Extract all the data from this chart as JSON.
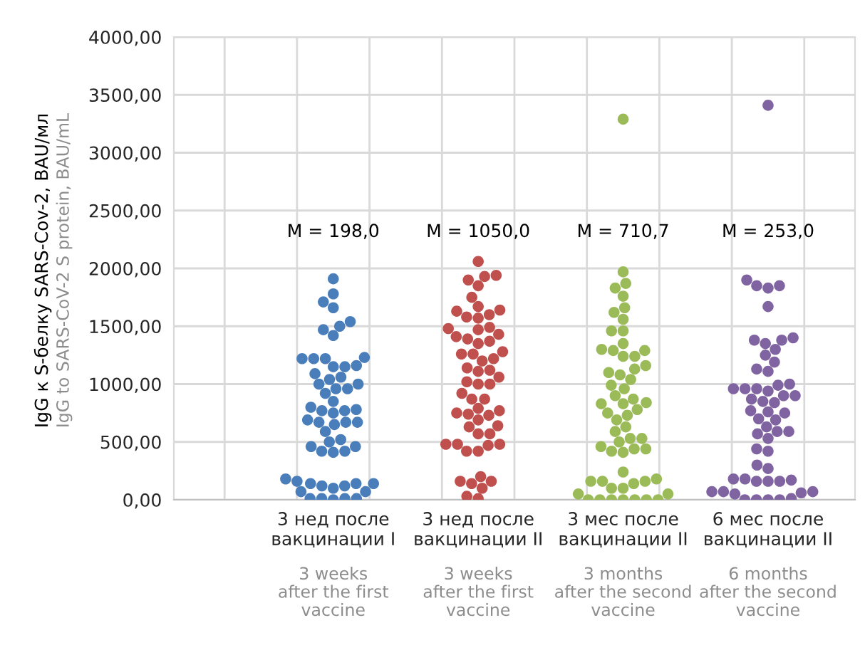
{
  "chart_data": {
    "type": "scatter",
    "ylabel": "IgG к S-белку SARS-Cov-2, BAU/мл",
    "categories": [
      "3 нед после\nвакцинации I",
      "3 нед после\nвакцинации II",
      "3 мес после\nвакцинации II",
      "6 мес после\nвакцинации II"
    ],
    "ylim": [
      0,
      4000
    ],
    "yticks": [
      {
        "value": 0,
        "label": "0,00"
      },
      {
        "value": 500,
        "label": "500,00"
      },
      {
        "value": 1000,
        "label": "1000,00"
      },
      {
        "value": 1500,
        "label": "1500,00"
      },
      {
        "value": 2000,
        "label": "2000,00"
      },
      {
        "value": 2500,
        "label": "2500,00"
      },
      {
        "value": 3000,
        "label": "3000,00"
      },
      {
        "value": 3500,
        "label": "3500,00"
      },
      {
        "value": 4000,
        "label": "4000,00"
      }
    ],
    "grid": true,
    "marker": "circle",
    "annotations": [
      "M = 198,0",
      "M = 1050,0",
      "M = 710,7",
      "M = 253,0",
      "3 weeks\nafter the first\nvaccine",
      "3 weeks\nafter the first\nvaccine",
      "3 months\nafter the second\nvaccine",
      "6 months\nafter the second\nvaccine",
      "IgG to SARS-CoV-2 S protein, BAU/mL"
    ],
    "series": [
      {
        "color": "#4a7ebb",
        "x": [
          "3 нед после\nвакцинации I",
          "3 нед после\nвакцинации I",
          "3 нед после\nвакцинации I",
          "3 нед после\nвакцинации I",
          "3 нед после\nвакцинации I",
          "3 нед после\nвакцинации I",
          "3 нед после\nвакцинации I",
          "3 нед после\nвакцинации I",
          "3 нед после\nвакцинации I",
          "3 нед после\nвакцинации I",
          "3 нед после\nвакцинации I",
          "3 нед после\nвакцинации I",
          "3 нед после\nвакцинации I",
          "3 нед после\nвакцинации I",
          "3 нед после\nвакцинации I",
          "3 нед после\nвакцинации I",
          "3 нед после\nвакцинации I",
          "3 нед после\nвакцинации I",
          "3 нед после\nвакцинации I",
          "3 нед после\nвакцинации I",
          "3 нед после\nвакцинации I",
          "3 нед после\nвакцинации I",
          "3 нед после\nвакцинации I",
          "3 нед после\nвакцинации I",
          "3 нед после\nвакцинации I",
          "3 нед после\nвакцинации I",
          "3 нед после\nвакцинации I",
          "3 нед после\nвакцинации I",
          "3 нед после\nвакцинации I",
          "3 нед после\nвакцинации I",
          "3 нед после\nвакцинации I",
          "3 нед после\nвакцинации I",
          "3 нед после\nвакцинации I",
          "3 нед после\nвакцинации I",
          "3 нед после\nвакцинации I",
          "3 нед после\nвакцинации I",
          "3 нед после\nвакцинации I",
          "3 нед после\nвакцинации I",
          "3 нед после\nвакцинации I",
          "3 нед после\nвакцинации I",
          "3 нед после\nвакцинации I",
          "3 нед после\nвакцинации I",
          "3 нед после\nвакцинации I",
          "3 нед после\nвакцинации I",
          "3 нед после\nвакцинации I",
          "3 нед после\nвакцинации I",
          "3 нед после\nвакцинации I",
          "3 нед после\nвакцинации I",
          "3 нед после\nвакцинации I",
          "3 нед после\nвакцинации I",
          "3 нед после\nвакцинации I",
          "3 нед после\nвакцинации I",
          "3 нед после\nвакцинации I",
          "3 нед после\nвакцинации I",
          "3 нед после\nвакцинации I",
          "3 нед после\nвакцинации I",
          "3 нед после\nвакцинации I"
        ],
        "values": [
          1910,
          1780,
          1710,
          1660,
          1420,
          1230,
          1160,
          1060,
          1150,
          1090,
          1040,
          1000,
          960,
          1220,
          1220,
          1220,
          1500,
          1470,
          1540,
          1150,
          1000,
          920,
          960,
          850,
          770,
          780,
          690,
          750,
          670,
          670,
          770,
          670,
          590,
          800,
          650,
          500,
          420,
          460,
          520,
          410,
          420,
          460,
          160,
          140,
          10,
          10,
          120,
          180,
          10,
          140,
          10,
          140,
          0,
          70,
          100,
          120,
          70
        ]
      },
      {
        "color": "#c0504d",
        "x": [
          "3 нед после\nвакцинации II",
          "3 нед после\nвакцинации II",
          "3 нед после\nвакцинации II",
          "3 нед после\nвакцинации II",
          "3 нед после\nвакцинации II",
          "3 нед после\nвакцинации II",
          "3 нед после\nвакцинации II",
          "3 нед после\nвакцинации II",
          "3 нед после\nвакцинации II",
          "3 нед после\nвакцинации II",
          "3 нед после\nвакцинации II",
          "3 нед после\nвакцинации II",
          "3 нед после\nвакцинации II",
          "3 нед после\nвакцинации II",
          "3 нед после\nвакцинации II",
          "3 нед после\nвакцинации II",
          "3 нед после\nвакцинации II",
          "3 нед после\nвакцинации II",
          "3 нед после\nвакцинации II",
          "3 нед после\nвакцинации II",
          "3 нед после\nвакцинации II",
          "3 нед после\nвакцинации II",
          "3 нед после\nвакцинации II",
          "3 нед после\nвакцинации II",
          "3 нед после\nвакцинации II",
          "3 нед после\nвакцинации II",
          "3 нед после\nвакцинации II",
          "3 нед после\nвакцинации II",
          "3 нед после\nвакцинации II",
          "3 нед после\nвакцинации II",
          "3 нед после\nвакцинации II",
          "3 нед после\nвакцинации II",
          "3 нед после\nвакцинации II",
          "3 нед после\nвакцинации II",
          "3 нед после\nвакцинации II",
          "3 нед после\nвакцинации II",
          "3 нед после\nвакцинации II",
          "3 нед после\nвакцинации II",
          "3 нед после\nвакцинации II",
          "3 нед после\nвакцинации II",
          "3 нед после\nвакцинации II",
          "3 нед после\nвакцинации II",
          "3 нед после\nвакцинации II",
          "3 нед после\nвакцинации II",
          "3 нед после\nвакцинации II",
          "3 нед после\nвакцинации II",
          "3 нед после\nвакцинации II",
          "3 нед после\nвакцинации II",
          "3 нед после\nвакцинации II",
          "3 нед после\nвакцинации II",
          "3 нед после\nвакцинации II",
          "3 нед после\nвакцинации II",
          "3 нед после\nвакцинации II",
          "3 нед после\nвакцинации II",
          "3 нед после\nвакцинации II",
          "3 нед после\nвакцинации II",
          "3 нед после\nвакцинации II",
          "3 нед после\nвакцинации II"
        ],
        "values": [
          2060,
          1900,
          1930,
          1940,
          1850,
          1750,
          1640,
          1600,
          1670,
          1570,
          1630,
          1580,
          1490,
          1470,
          1350,
          1370,
          1480,
          1410,
          1430,
          1390,
          1260,
          1280,
          1200,
          1220,
          1260,
          1110,
          1140,
          1060,
          1120,
          1000,
          1000,
          1020,
          920,
          870,
          870,
          740,
          750,
          790,
          770,
          730,
          690,
          640,
          630,
          570,
          570,
          480,
          480,
          480,
          470,
          420,
          420,
          200,
          100,
          160,
          160,
          140,
          30,
          10
        ]
      },
      {
        "color": "#9bbb59",
        "x": [
          "3 мес после\nвакцинации II",
          "3 мес после\nвакцинации II",
          "3 мес после\nвакцинации II",
          "3 мес после\nвакцинации II",
          "3 мес после\nвакцинации II",
          "3 мес после\nвакцинации II",
          "3 мес после\nвакцинации II",
          "3 мес после\nвакцинации II",
          "3 мес после\nвакцинации II",
          "3 мес после\nвакцинации II",
          "3 мес после\nвакцинации II",
          "3 мес после\nвакцинации II",
          "3 мес после\nвакцинации II",
          "3 мес после\nвакцинации II",
          "3 мес после\nвакцинации II",
          "3 мес после\nвакцинации II",
          "3 мес после\nвакцинации II",
          "3 мес после\nвакцинации II",
          "3 мес после\nвакцинации II",
          "3 мес после\nвакцинации II",
          "3 мес после\nвакцинации II",
          "3 мес после\nвакцинации II",
          "3 мес после\nвакцинации II",
          "3 мес после\nвакцинации II",
          "3 мес после\nвакцинации II",
          "3 мес после\nвакцинации II",
          "3 мес после\nвакцинации II",
          "3 мес после\nвакцинации II",
          "3 мес после\nвакцинации II",
          "3 мес после\nвакцинации II",
          "3 мес после\nвакцинации II",
          "3 мес после\nвакцинации II",
          "3 мес после\nвакцинации II",
          "3 мес после\nвакцинации II",
          "3 мес после\nвакцинации II",
          "3 мес после\nвакцинации II",
          "3 мес после\nвакцинации II",
          "3 мес после\nвакцинации II",
          "3 мес после\nвакцинации II",
          "3 мес после\nвакцинации II",
          "3 мес после\nвакцинации II",
          "3 мес после\nвакцинации II",
          "3 мес после\nвакцинации II",
          "3 мес после\nвакцинации II",
          "3 мес после\nвакцинации II",
          "3 мес после\nвакцинации II",
          "3 мес после\nвакцинации II",
          "3 мес после\nвакцинации II",
          "3 мес после\nвакцинации II",
          "3 мес после\nвакцинации II",
          "3 мес после\nвакцинации II",
          "3 мес после\nвакцинации II",
          "3 мес после\nвакцинации II",
          "3 мес после\nвакцинации II",
          "3 мес после\nвакцинации II",
          "3 мес после\nвакцинации II",
          "3 мес после\nвакцинации II",
          "3 мес после\nвакцинации II",
          "3 мес после\nвакцинации II"
        ],
        "values": [
          3290,
          1970,
          1870,
          1830,
          1760,
          1660,
          1620,
          1560,
          1460,
          1460,
          1350,
          1290,
          1240,
          1290,
          1300,
          1240,
          1160,
          1130,
          1100,
          1080,
          1040,
          990,
          960,
          900,
          830,
          780,
          840,
          830,
          750,
          730,
          690,
          870,
          630,
          590,
          530,
          530,
          500,
          410,
          440,
          440,
          460,
          420,
          240,
          160,
          160,
          160,
          180,
          140,
          100,
          100,
          0,
          0,
          0,
          0,
          0,
          0,
          0,
          50,
          50
        ]
      },
      {
        "color": "#8064a2",
        "x": [
          "6 мес после\nвакцинации II",
          "6 мес после\nвакцинации II",
          "6 мес после\nвакцинации II",
          "6 мес после\nвакцинации II",
          "6 мес после\nвакцинации II",
          "6 мес после\nвакцинации II",
          "6 мес после\nвакцинации II",
          "6 мес после\nвакцинации II",
          "6 мес после\nвакцинации II",
          "6 мес после\nвакцинации II",
          "6 мес после\nвакцинации II",
          "6 мес после\nвакцинации II",
          "6 мес после\nвакцинации II",
          "6 мес после\nвакцинации II",
          "6 мес после\nвакцинации II",
          "6 мес после\nвакцинации II",
          "6 мес после\nвакцинации II",
          "6 мес после\nвакцинации II",
          "6 мес после\nвакцинации II",
          "6 мес после\nвакцинации II",
          "6 мес после\nвакцинации II",
          "6 мес после\nвакцинации II",
          "6 мес после\nвакцинации II",
          "6 мес после\nвакцинации II",
          "6 мес после\nвакцинации II",
          "6 мес после\nвакцинации II",
          "6 мес после\nвакцинации II",
          "6 мес после\nвакцинации II",
          "6 мес после\nвакцинации II",
          "6 мес после\nвакцинации II",
          "6 мес после\nвакцинации II",
          "6 мес после\nвакцинации II",
          "6 мес после\nвакцинации II",
          "6 мес после\nвакцинации II",
          "6 мес после\nвакцинации II",
          "6 мес после\nвакцинации II",
          "6 мес после\nвакцинации II",
          "6 мес после\nвакцинации II",
          "6 мес после\nвакцинации II",
          "6 мес после\nвакцинации II",
          "6 мес после\nвакцинации II",
          "6 мес после\nвакцинации II",
          "6 мес после\nвакцинации II",
          "6 мес после\nвакцинации II",
          "6 мес после\nвакцинации II",
          "6 мес после\nвакцинации II",
          "6 мес после\nвакцинации II",
          "6 мес после\nвакцинации II",
          "6 мес после\nвакцинации II",
          "6 мес после\nвакцинации II",
          "6 мес после\nвакцинации II",
          "6 мес после\nвакцинации II",
          "6 мес после\nвакцинации II",
          "6 мес после\nвакцинации II",
          "6 мес после\nвакцинации II",
          "6 мес после\nвакцинации II"
        ],
        "values": [
          3410,
          1850,
          1900,
          1830,
          1850,
          1670,
          1380,
          1400,
          1380,
          1350,
          1300,
          1250,
          1190,
          1130,
          1110,
          960,
          990,
          960,
          960,
          1000,
          940,
          900,
          870,
          900,
          840,
          850,
          770,
          750,
          760,
          700,
          690,
          630,
          590,
          570,
          530,
          590,
          420,
          440,
          300,
          270,
          180,
          160,
          180,
          160,
          170,
          160,
          70,
          50,
          70,
          60,
          70,
          0,
          0,
          0,
          0,
          10
        ]
      }
    ]
  }
}
